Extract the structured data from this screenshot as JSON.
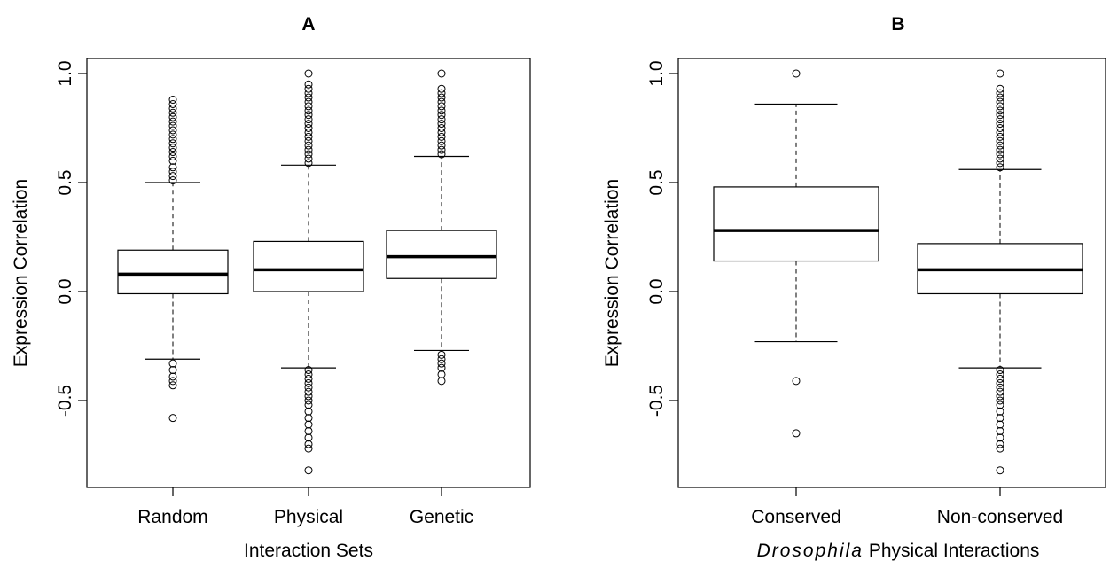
{
  "chart_data": [
    {
      "type": "box",
      "title": "A",
      "xlabel": "Interaction Sets",
      "ylabel": "Expression Correlation",
      "ylim": [
        -0.9,
        1.05
      ],
      "yticks": [
        -0.5,
        0.0,
        0.5,
        1.0
      ],
      "ytick_labels": [
        "-0.5",
        "0.0",
        "0.5",
        "1.0"
      ],
      "categories": [
        "Random",
        "Physical",
        "Genetic"
      ],
      "boxes": [
        {
          "name": "Random",
          "whisker_low": -0.31,
          "q1": -0.01,
          "median": 0.08,
          "q3": 0.19,
          "whisker_high": 0.5,
          "outliers_high": [
            0.51,
            0.53,
            0.55,
            0.57,
            0.6,
            0.62,
            0.64,
            0.66,
            0.68,
            0.7,
            0.72,
            0.74,
            0.76,
            0.78,
            0.8,
            0.82,
            0.84,
            0.86,
            0.88
          ],
          "outliers_low": [
            -0.33,
            -0.36,
            -0.39,
            -0.41,
            -0.43,
            -0.58
          ]
        },
        {
          "name": "Physical",
          "whisker_low": -0.35,
          "q1": 0.0,
          "median": 0.1,
          "q3": 0.23,
          "whisker_high": 0.58,
          "outliers_high": [
            0.59,
            0.61,
            0.63,
            0.65,
            0.67,
            0.69,
            0.71,
            0.73,
            0.75,
            0.77,
            0.79,
            0.81,
            0.83,
            0.85,
            0.87,
            0.89,
            0.91,
            0.93,
            0.95,
            1.0
          ],
          "outliers_low": [
            -0.36,
            -0.38,
            -0.4,
            -0.42,
            -0.44,
            -0.46,
            -0.48,
            -0.5,
            -0.52,
            -0.55,
            -0.58,
            -0.61,
            -0.64,
            -0.67,
            -0.7,
            -0.72,
            -0.82
          ]
        },
        {
          "name": "Genetic",
          "whisker_low": -0.27,
          "q1": 0.06,
          "median": 0.16,
          "q3": 0.28,
          "whisker_high": 0.62,
          "outliers_high": [
            0.63,
            0.65,
            0.67,
            0.69,
            0.71,
            0.73,
            0.75,
            0.77,
            0.79,
            0.81,
            0.83,
            0.85,
            0.87,
            0.89,
            0.91,
            0.93,
            1.0
          ],
          "outliers_low": [
            -0.29,
            -0.31,
            -0.33,
            -0.35,
            -0.38,
            -0.41
          ]
        }
      ]
    },
    {
      "type": "box",
      "title": "B",
      "xlabel_italic": "Drosophila",
      "xlabel": "Physical Interactions",
      "ylabel": "Expression Correlation",
      "ylim": [
        -0.9,
        1.05
      ],
      "yticks": [
        -0.5,
        0.0,
        0.5,
        1.0
      ],
      "ytick_labels": [
        "-0.5",
        "0.0",
        "0.5",
        "1.0"
      ],
      "categories": [
        "Conserved",
        "Non-conserved"
      ],
      "boxes": [
        {
          "name": "Conserved",
          "whisker_low": -0.23,
          "q1": 0.14,
          "median": 0.28,
          "q3": 0.48,
          "whisker_high": 0.86,
          "outliers_high": [
            1.0
          ],
          "outliers_low": [
            -0.41,
            -0.65
          ]
        },
        {
          "name": "Non-conserved",
          "whisker_low": -0.35,
          "q1": -0.01,
          "median": 0.1,
          "q3": 0.22,
          "whisker_high": 0.56,
          "outliers_high": [
            0.57,
            0.59,
            0.61,
            0.63,
            0.65,
            0.67,
            0.69,
            0.71,
            0.73,
            0.75,
            0.77,
            0.79,
            0.81,
            0.83,
            0.85,
            0.87,
            0.89,
            0.91,
            0.93,
            1.0
          ],
          "outliers_low": [
            -0.36,
            -0.38,
            -0.4,
            -0.42,
            -0.44,
            -0.46,
            -0.48,
            -0.5,
            -0.52,
            -0.55,
            -0.58,
            -0.61,
            -0.64,
            -0.67,
            -0.7,
            -0.72,
            -0.82
          ]
        }
      ]
    }
  ]
}
